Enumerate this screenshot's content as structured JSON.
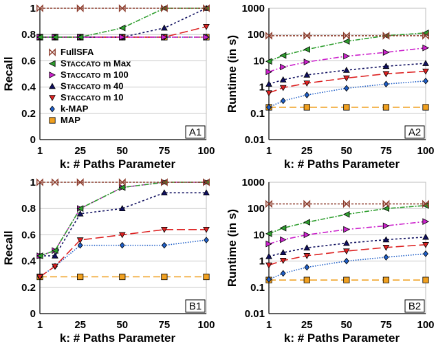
{
  "legend": [
    {
      "name": "FullSFA",
      "color": "#8b3a2a",
      "dash": "3,2",
      "marker": "bowtie"
    },
    {
      "name": "STACCATO m Max",
      "color": "#2e9e2e",
      "dash": "7,2,2,2",
      "marker": "tri-left"
    },
    {
      "name": "STACCATO m 100",
      "color": "#cc22cc",
      "dash": "8,3,2,3",
      "marker": "tri-right"
    },
    {
      "name": "STACCATO m 40",
      "color": "#101060",
      "dash": "3,3",
      "marker": "tri-up"
    },
    {
      "name": "STACCATO m 10",
      "color": "#dd2222",
      "dash": "12,5",
      "marker": "tri-down"
    },
    {
      "name": "k-MAP",
      "color": "#1f5fc8",
      "dash": "1.5,2",
      "marker": "diamond"
    },
    {
      "name": "MAP",
      "color": "#f0a020",
      "dash": "10,5",
      "marker": "square"
    }
  ],
  "chart_data": [
    {
      "id": "A1",
      "type": "line",
      "tag": "A1",
      "xlabel": "k: # Paths Parameter",
      "ylabel": "Recall",
      "x_ticks": [
        "1",
        "25",
        "50",
        "75",
        "100"
      ],
      "x_tick_values": [
        1,
        25,
        50,
        75,
        100
      ],
      "y_ticks": [
        "0",
        "0.2",
        "0.4",
        "0.6",
        "0.8",
        "1"
      ],
      "y_tick_values": [
        0,
        0.2,
        0.4,
        0.6,
        0.8,
        1
      ],
      "xlim": [
        1,
        100
      ],
      "ylim": [
        0,
        1
      ],
      "yscale": "linear",
      "grid": true,
      "legend": "left",
      "series": [
        {
          "name": "FullSFA",
          "x": [
            1,
            25,
            50,
            75,
            100
          ],
          "y": [
            1,
            1,
            1,
            1,
            1
          ]
        },
        {
          "name": "STACCATO m Max",
          "x": [
            1,
            10,
            25,
            50,
            75,
            100
          ],
          "y": [
            0.78,
            0.78,
            0.78,
            0.85,
            1.0,
            1.0
          ]
        },
        {
          "name": "STACCATO m 100",
          "x": [
            1,
            10,
            25,
            50,
            75,
            100
          ],
          "y": [
            0.78,
            0.78,
            0.78,
            0.78,
            0.78,
            0.78
          ]
        },
        {
          "name": "STACCATO m 40",
          "x": [
            1,
            10,
            25,
            50,
            75,
            100
          ],
          "y": [
            0.78,
            0.78,
            0.78,
            0.78,
            0.85,
            1.0
          ]
        },
        {
          "name": "STACCATO m 10",
          "x": [
            1,
            10,
            25,
            50,
            75,
            100
          ],
          "y": [
            0.78,
            0.78,
            0.78,
            0.78,
            0.78,
            0.86
          ]
        },
        {
          "name": "k-MAP",
          "x": [
            1,
            10,
            25,
            50,
            75,
            100
          ],
          "y": [
            0.78,
            0.78,
            0.78,
            0.78,
            0.78,
            0.78
          ]
        },
        {
          "name": "MAP",
          "x": [
            1,
            10,
            25,
            50,
            75,
            100
          ],
          "y": [
            0.78,
            0.78,
            0.78,
            0.78,
            0.78,
            0.78
          ]
        }
      ]
    },
    {
      "id": "A2",
      "type": "line",
      "tag": "A2",
      "xlabel": "k: # Paths Parameter",
      "ylabel": "Runtime (in s)",
      "x_ticks": [
        "1",
        "25",
        "50",
        "75",
        "100"
      ],
      "x_tick_values": [
        1,
        25,
        50,
        75,
        100
      ],
      "y_ticks": [
        "0.01",
        "0.1",
        "1",
        "10",
        "100",
        "1000"
      ],
      "y_tick_values": [
        0.01,
        0.1,
        1,
        10,
        100,
        1000
      ],
      "xlim": [
        1,
        100
      ],
      "ylim": [
        0.01,
        1000
      ],
      "yscale": "log",
      "grid": true,
      "series": [
        {
          "name": "FullSFA",
          "x": [
            1,
            25,
            50,
            75,
            100
          ],
          "y": [
            90,
            90,
            90,
            90,
            90
          ]
        },
        {
          "name": "STACCATO m Max",
          "x": [
            1,
            10,
            25,
            50,
            75,
            100
          ],
          "y": [
            9.5,
            16,
            27,
            55,
            90,
            115
          ]
        },
        {
          "name": "STACCATO m 100",
          "x": [
            1,
            10,
            25,
            50,
            75,
            100
          ],
          "y": [
            3.8,
            5.8,
            9,
            15,
            21,
            31
          ]
        },
        {
          "name": "STACCATO m 40",
          "x": [
            1,
            10,
            25,
            50,
            75,
            100
          ],
          "y": [
            1.3,
            1.9,
            2.9,
            4.4,
            6.2,
            8
          ]
        },
        {
          "name": "STACCATO m 10",
          "x": [
            1,
            10,
            25,
            50,
            75,
            100
          ],
          "y": [
            0.6,
            0.95,
            1.4,
            2.2,
            3.2,
            4
          ]
        },
        {
          "name": "k-MAP",
          "x": [
            1,
            10,
            25,
            50,
            75,
            100
          ],
          "y": [
            0.17,
            0.3,
            0.5,
            0.9,
            1.3,
            1.7
          ]
        },
        {
          "name": "MAP",
          "x": [
            1,
            25,
            50,
            75,
            100
          ],
          "y": [
            0.17,
            0.17,
            0.17,
            0.17,
            0.17
          ]
        }
      ]
    },
    {
      "id": "B1",
      "type": "line",
      "tag": "B1",
      "xlabel": "k: # Paths Parameter",
      "ylabel": "Recall",
      "x_ticks": [
        "1",
        "25",
        "50",
        "75",
        "100"
      ],
      "x_tick_values": [
        1,
        25,
        50,
        75,
        100
      ],
      "y_ticks": [
        "0",
        "0.2",
        "0.4",
        "0.6",
        "0.8",
        "1"
      ],
      "y_tick_values": [
        0,
        0.2,
        0.4,
        0.6,
        0.8,
        1
      ],
      "xlim": [
        1,
        100
      ],
      "ylim": [
        0,
        1
      ],
      "yscale": "linear",
      "grid": true,
      "series": [
        {
          "name": "FullSFA",
          "x": [
            1,
            10,
            25,
            50,
            75,
            100
          ],
          "y": [
            1,
            1,
            1,
            1,
            1,
            1
          ]
        },
        {
          "name": "STACCATO m Max",
          "x": [
            1,
            10,
            25,
            50,
            75,
            100
          ],
          "y": [
            0.44,
            0.48,
            0.8,
            0.96,
            1.0,
            1.0
          ]
        },
        {
          "name": "STACCATO m 100",
          "x": [
            1,
            10,
            25,
            50,
            75,
            100
          ],
          "y": [
            0.44,
            0.48,
            0.8,
            0.96,
            1.0,
            1.0
          ]
        },
        {
          "name": "STACCATO m 40",
          "x": [
            1,
            10,
            25,
            50,
            75,
            100
          ],
          "y": [
            0.44,
            0.44,
            0.76,
            0.8,
            0.92,
            0.92
          ]
        },
        {
          "name": "STACCATO m 10",
          "x": [
            1,
            10,
            25,
            50,
            75,
            100
          ],
          "y": [
            0.28,
            0.36,
            0.56,
            0.6,
            0.64,
            0.64
          ]
        },
        {
          "name": "k-MAP",
          "x": [
            1,
            10,
            25,
            50,
            75,
            100
          ],
          "y": [
            0.28,
            0.36,
            0.52,
            0.52,
            0.52,
            0.56
          ]
        },
        {
          "name": "MAP",
          "x": [
            1,
            25,
            50,
            75,
            100
          ],
          "y": [
            0.28,
            0.28,
            0.28,
            0.28,
            0.28
          ]
        }
      ]
    },
    {
      "id": "B2",
      "type": "line",
      "tag": "B2",
      "xlabel": "k: # Paths Parameter",
      "ylabel": "Runtime (in s)",
      "x_ticks": [
        "1",
        "25",
        "50",
        "75",
        "100"
      ],
      "x_tick_values": [
        1,
        25,
        50,
        75,
        100
      ],
      "y_ticks": [
        "0.01",
        "0.1",
        "1",
        "10",
        "100",
        "1000"
      ],
      "y_tick_values": [
        0.01,
        0.1,
        1,
        10,
        100,
        1000
      ],
      "xlim": [
        1,
        100
      ],
      "ylim": [
        0.01,
        1000
      ],
      "yscale": "log",
      "grid": true,
      "series": [
        {
          "name": "FullSFA",
          "x": [
            1,
            25,
            50,
            75,
            100
          ],
          "y": [
            150,
            150,
            150,
            150,
            150
          ]
        },
        {
          "name": "STACCATO m Max",
          "x": [
            1,
            10,
            25,
            50,
            75,
            100
          ],
          "y": [
            11,
            18,
            30,
            60,
            100,
            130
          ]
        },
        {
          "name": "STACCATO m 100",
          "x": [
            1,
            10,
            25,
            50,
            75,
            100
          ],
          "y": [
            4.5,
            6.5,
            10,
            16,
            22,
            32
          ]
        },
        {
          "name": "STACCATO m 40",
          "x": [
            1,
            10,
            25,
            50,
            75,
            100
          ],
          "y": [
            1.5,
            2.1,
            3.2,
            4.8,
            6.5,
            8.2
          ]
        },
        {
          "name": "STACCATO m 10",
          "x": [
            1,
            10,
            25,
            50,
            75,
            100
          ],
          "y": [
            0.7,
            1.05,
            1.6,
            2.4,
            3.3,
            4.2
          ]
        },
        {
          "name": "k-MAP",
          "x": [
            1,
            10,
            25,
            50,
            75,
            100
          ],
          "y": [
            0.2,
            0.34,
            0.58,
            1.0,
            1.4,
            1.9
          ]
        },
        {
          "name": "MAP",
          "x": [
            1,
            25,
            50,
            75,
            100
          ],
          "y": [
            0.19,
            0.19,
            0.19,
            0.19,
            0.19
          ]
        }
      ]
    }
  ]
}
